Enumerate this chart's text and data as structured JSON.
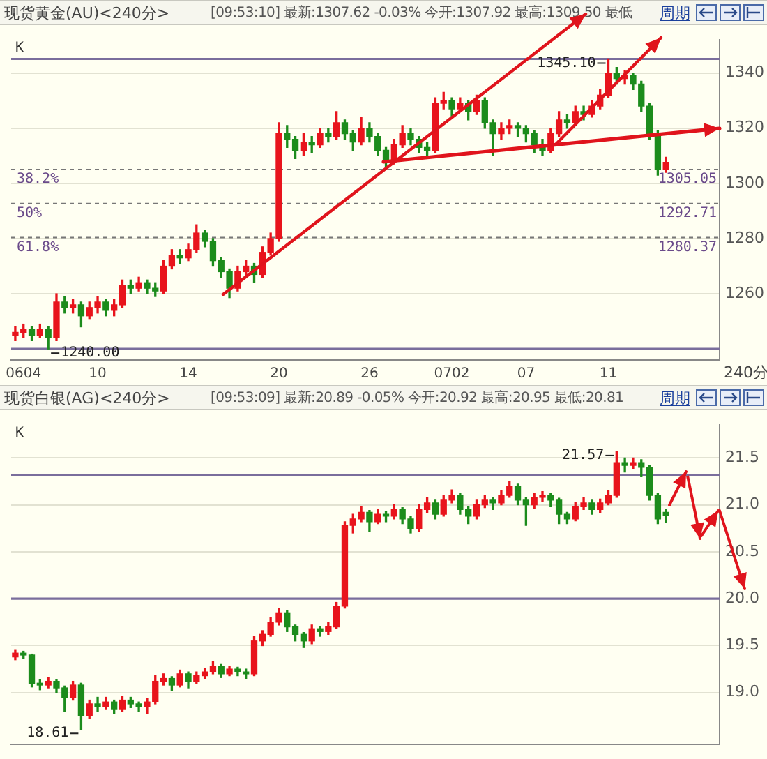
{
  "chart_data": [
    {
      "type": "candlestick",
      "title": "现货黄金(AU)<240分>",
      "subtitle": "[09:53:10] 最新:1307.62 -0.03% 今开:1307.92 最高:1309.50 最低",
      "xlabel": "240分",
      "categories": [
        null,
        "0604",
        null,
        null,
        null,
        null,
        null,
        null,
        null,
        null,
        "10",
        null,
        null,
        null,
        null,
        null,
        null,
        null,
        null,
        null,
        null,
        "14",
        null,
        null,
        null,
        null,
        null,
        null,
        null,
        null,
        null,
        null,
        "20",
        null,
        null,
        null,
        null,
        null,
        null,
        null,
        null,
        null,
        null,
        "26",
        null,
        null,
        null,
        null,
        null,
        null,
        null,
        null,
        null,
        "0702",
        null,
        null,
        null,
        null,
        null,
        null,
        null,
        null,
        "07",
        null,
        null,
        null,
        null,
        null,
        null,
        null,
        null,
        null,
        "11",
        null,
        null,
        null,
        null,
        null,
        null,
        null,
        null,
        null,
        null,
        null,
        null,
        null
      ],
      "ohlc": [
        [
          1245,
          1248,
          1243,
          1246
        ],
        [
          1246,
          1249,
          1244,
          1247
        ],
        [
          1247,
          1248,
          1243,
          1245
        ],
        [
          1245,
          1249,
          1244,
          1247
        ],
        [
          1247,
          1248,
          1240,
          1244
        ],
        [
          1244,
          1260,
          1243,
          1257
        ],
        [
          1257,
          1259,
          1253,
          1255
        ],
        [
          1255,
          1258,
          1253,
          1256
        ],
        [
          1256,
          1257,
          1248,
          1252
        ],
        [
          1252,
          1257,
          1251,
          1255
        ],
        [
          1255,
          1259,
          1253,
          1257
        ],
        [
          1257,
          1258,
          1252,
          1254
        ],
        [
          1254,
          1258,
          1252,
          1256
        ],
        [
          1256,
          1265,
          1255,
          1263
        ],
        [
          1263,
          1265,
          1260,
          1262
        ],
        [
          1262,
          1266,
          1261,
          1264
        ],
        [
          1264,
          1265,
          1260,
          1262
        ],
        [
          1262,
          1264,
          1259,
          1261
        ],
        [
          1261,
          1272,
          1260,
          1270
        ],
        [
          1270,
          1276,
          1269,
          1274
        ],
        [
          1274,
          1276,
          1271,
          1273
        ],
        [
          1273,
          1278,
          1272,
          1276
        ],
        [
          1276,
          1285,
          1275,
          1282
        ],
        [
          1282,
          1283,
          1277,
          1279
        ],
        [
          1279,
          1280,
          1270,
          1272
        ],
        [
          1272,
          1273,
          1266,
          1268
        ],
        [
          1268,
          1269,
          1258.6,
          1262
        ],
        [
          1262,
          1270,
          1261,
          1268
        ],
        [
          1268,
          1272,
          1266,
          1270
        ],
        [
          1270,
          1271,
          1264,
          1267
        ],
        [
          1267,
          1277,
          1266,
          1275
        ],
        [
          1275,
          1282,
          1274,
          1280
        ],
        [
          1280,
          1322,
          1279,
          1318
        ],
        [
          1318,
          1321,
          1313,
          1316
        ],
        [
          1316,
          1317,
          1309,
          1312
        ],
        [
          1312,
          1318,
          1310,
          1315
        ],
        [
          1315,
          1317,
          1311,
          1314
        ],
        [
          1314,
          1320,
          1313,
          1318
        ],
        [
          1318,
          1320,
          1315,
          1317
        ],
        [
          1317,
          1326,
          1316,
          1322
        ],
        [
          1322,
          1323,
          1316,
          1318
        ],
        [
          1318,
          1319,
          1312,
          1315
        ],
        [
          1315,
          1324,
          1314,
          1320
        ],
        [
          1320,
          1322,
          1315,
          1317
        ],
        [
          1317,
          1318,
          1310,
          1312
        ],
        [
          1312,
          1313,
          1306,
          1308
        ],
        [
          1308,
          1316,
          1307,
          1314
        ],
        [
          1314,
          1321,
          1313,
          1318
        ],
        [
          1318,
          1320,
          1314,
          1316
        ],
        [
          1316,
          1317,
          1311,
          1313
        ],
        [
          1313,
          1315,
          1310,
          1312
        ],
        [
          1312,
          1331,
          1311,
          1329
        ],
        [
          1329,
          1333,
          1327,
          1330
        ],
        [
          1330,
          1331,
          1324,
          1327
        ],
        [
          1327,
          1331,
          1326,
          1329
        ],
        [
          1329,
          1330,
          1323,
          1326
        ],
        [
          1326,
          1332,
          1325,
          1330
        ],
        [
          1330,
          1331,
          1320,
          1322
        ],
        [
          1322,
          1323,
          1310,
          1318
        ],
        [
          1318,
          1322,
          1316,
          1320
        ],
        [
          1320,
          1323,
          1318,
          1321
        ],
        [
          1321,
          1322,
          1317,
          1320
        ],
        [
          1320,
          1321,
          1315,
          1318
        ],
        [
          1318,
          1319,
          1311,
          1314
        ],
        [
          1314,
          1316,
          1310,
          1312
        ],
        [
          1312,
          1320,
          1311,
          1318
        ],
        [
          1318,
          1326,
          1317,
          1323
        ],
        [
          1323,
          1325,
          1320,
          1322
        ],
        [
          1322,
          1328,
          1321,
          1326
        ],
        [
          1326,
          1328,
          1323,
          1325
        ],
        [
          1325,
          1330,
          1324,
          1328
        ],
        [
          1328,
          1334,
          1327,
          1332
        ],
        [
          1332,
          1345.1,
          1331,
          1340
        ],
        [
          1340,
          1342,
          1336,
          1338
        ],
        [
          1338,
          1341,
          1336,
          1339
        ],
        [
          1339,
          1340,
          1334,
          1336
        ],
        [
          1336,
          1337,
          1326,
          1328
        ],
        [
          1328,
          1329,
          1316,
          1318
        ],
        [
          1318,
          1319,
          1303,
          1305
        ],
        [
          1305,
          1309.5,
          1304,
          1307.62
        ],
        null,
        null,
        null,
        null,
        null,
        null
      ],
      "colors": [
        "#e8141c",
        "#e8141c",
        "#1c8c1c",
        "#e8141c",
        "#1c8c1c",
        "#e8141c",
        "#1c8c1c",
        "#e8141c",
        "#1c8c1c",
        "#e8141c",
        "#e8141c",
        "#1c8c1c",
        "#e8141c",
        "#e8141c",
        "#1c8c1c",
        "#e8141c",
        "#1c8c1c",
        "#1c8c1c",
        "#e8141c",
        "#e8141c",
        "#1c8c1c",
        "#e8141c",
        "#e8141c",
        "#1c8c1c",
        "#1c8c1c",
        "#1c8c1c",
        "#1c8c1c",
        "#e8141c",
        "#e8141c",
        "#1c8c1c",
        "#e8141c",
        "#e8141c",
        "#e8141c",
        "#1c8c1c",
        "#1c8c1c",
        "#e8141c",
        "#1c8c1c",
        "#e8141c",
        "#1c8c1c",
        "#e8141c",
        "#1c8c1c",
        "#1c8c1c",
        "#e8141c",
        "#1c8c1c",
        "#1c8c1c",
        "#1c8c1c",
        "#e8141c",
        "#e8141c",
        "#1c8c1c",
        "#1c8c1c",
        "#1c8c1c",
        "#e8141c",
        "#e8141c",
        "#1c8c1c",
        "#e8141c",
        "#1c8c1c",
        "#e8141c",
        "#1c8c1c",
        "#1c8c1c",
        "#e8141c",
        "#e8141c",
        "#1c8c1c",
        "#1c8c1c",
        "#1c8c1c",
        "#1c8c1c",
        "#e8141c",
        "#e8141c",
        "#1c8c1c",
        "#e8141c",
        "#1c8c1c",
        "#e8141c",
        "#e8141c",
        "#e8141c",
        "#1c8c1c",
        "#e8141c",
        "#1c8c1c",
        "#1c8c1c",
        "#1c8c1c",
        "#1c8c1c",
        "#e8141c",
        null,
        null,
        null,
        null,
        null,
        null
      ],
      "ylim": [
        1236,
        1352
      ],
      "yticks": [
        1260,
        1280,
        1300,
        1320,
        1340
      ],
      "grid": "y",
      "ref_lines": [
        {
          "axis": "y",
          "value": 1345.1,
          "color": "#7a6e9c"
        },
        {
          "axis": "y",
          "value": 1240,
          "color": "#7a6e9c"
        },
        {
          "axis": "y",
          "value": 1305.05,
          "label": "1305.05",
          "color": "#777777",
          "line_style": "dashed"
        },
        {
          "axis": "y",
          "value": 1292.71,
          "label": "1292.71",
          "color": "#777777",
          "line_style": "dashed"
        },
        {
          "axis": "y",
          "value": 1280.37,
          "label": "1280.37",
          "color": "#777777",
          "line_style": "dashed"
        }
      ],
      "annotations": [
        "K",
        "周期",
        {
          "text": "1345.10",
          "y": 1345.1
        },
        {
          "text": "1240.00",
          "y": 1240
        },
        {
          "text": "38.2%",
          "y": 1305.05
        },
        {
          "text": "50%",
          "y": 1292.71
        },
        {
          "text": "61.8%",
          "y": 1280.37
        }
      ]
    },
    {
      "type": "candlestick",
      "title": "现货白银(AG)<240分>",
      "subtitle": "[09:53:09] 最新:20.89 -0.05% 今开:20.92 最高:20.95 最低:20.81",
      "categories": [
        null,
        null,
        null,
        null,
        null,
        null,
        null,
        null,
        null,
        null,
        null,
        null,
        null,
        null,
        null,
        null,
        null,
        null,
        null,
        null,
        null,
        null,
        null,
        null,
        null,
        null,
        null,
        null,
        null,
        null,
        null,
        null,
        null,
        null,
        null,
        null,
        null,
        null,
        null,
        null,
        null,
        null,
        null,
        null,
        null,
        null,
        null,
        null,
        null,
        null,
        null,
        null,
        null,
        null,
        null,
        null,
        null,
        null,
        null,
        null,
        null,
        null,
        null,
        null,
        null,
        null,
        null,
        null,
        null,
        null,
        null,
        null,
        null,
        null,
        null,
        null,
        null,
        null,
        null,
        null,
        null,
        null,
        null,
        null,
        null,
        null
      ],
      "ohlc": [
        [
          19.38,
          19.45,
          19.35,
          19.42
        ],
        [
          19.42,
          19.44,
          19.36,
          19.4
        ],
        [
          19.4,
          19.41,
          19.06,
          19.1
        ],
        [
          19.1,
          19.14,
          19.03,
          19.08
        ],
        [
          19.08,
          19.16,
          19.05,
          19.12
        ],
        [
          19.12,
          19.14,
          19,
          19.05
        ],
        [
          19.05,
          19.07,
          18.8,
          18.95
        ],
        [
          18.95,
          19.12,
          18.92,
          19.08
        ],
        [
          19.08,
          19.1,
          18.61,
          18.75
        ],
        [
          18.75,
          18.92,
          18.72,
          18.88
        ],
        [
          18.88,
          18.95,
          18.8,
          18.85
        ],
        [
          18.85,
          18.95,
          18.82,
          18.9
        ],
        [
          18.9,
          18.92,
          18.78,
          18.82
        ],
        [
          18.82,
          18.96,
          18.8,
          18.92
        ],
        [
          18.92,
          18.95,
          18.84,
          18.88
        ],
        [
          18.88,
          18.9,
          18.8,
          18.85
        ],
        [
          18.85,
          18.94,
          18.78,
          18.9
        ],
        [
          18.9,
          19.18,
          18.88,
          19.12
        ],
        [
          19.12,
          19.2,
          19.08,
          19.15
        ],
        [
          19.15,
          19.17,
          19.02,
          19.08
        ],
        [
          19.08,
          19.24,
          19.06,
          19.2
        ],
        [
          19.2,
          19.22,
          19.05,
          19.12
        ],
        [
          19.12,
          19.22,
          19.1,
          19.18
        ],
        [
          19.18,
          19.26,
          19.15,
          19.22
        ],
        [
          19.22,
          19.33,
          19.2,
          19.28
        ],
        [
          19.28,
          19.3,
          19.16,
          19.2
        ],
        [
          19.2,
          19.28,
          19.18,
          19.25
        ],
        [
          19.25,
          19.27,
          19.18,
          19.22
        ],
        [
          19.22,
          19.25,
          19.15,
          19.2
        ],
        [
          19.2,
          19.6,
          19.18,
          19.55
        ],
        [
          19.55,
          19.66,
          19.5,
          19.62
        ],
        [
          19.62,
          19.8,
          19.6,
          19.75
        ],
        [
          19.75,
          19.9,
          19.72,
          19.85
        ],
        [
          19.85,
          19.87,
          19.65,
          19.7
        ],
        [
          19.7,
          19.72,
          19.55,
          19.62
        ],
        [
          19.62,
          19.64,
          19.48,
          19.55
        ],
        [
          19.55,
          19.72,
          19.52,
          19.68
        ],
        [
          19.68,
          19.7,
          19.6,
          19.65
        ],
        [
          19.65,
          19.75,
          19.62,
          19.7
        ],
        [
          19.7,
          19.96,
          19.68,
          19.92
        ],
        [
          19.92,
          20.82,
          19.9,
          20.78
        ],
        [
          20.78,
          20.9,
          20.7,
          20.85
        ],
        [
          20.85,
          20.98,
          20.82,
          20.92
        ],
        [
          20.92,
          20.94,
          20.72,
          20.82
        ],
        [
          20.82,
          20.95,
          20.8,
          20.9
        ],
        [
          20.9,
          20.93,
          20.82,
          20.88
        ],
        [
          20.88,
          21,
          20.85,
          20.95
        ],
        [
          20.95,
          20.97,
          20.8,
          20.85
        ],
        [
          20.85,
          20.88,
          20.7,
          20.75
        ],
        [
          20.75,
          21,
          20.72,
          20.95
        ],
        [
          20.95,
          21.08,
          20.92,
          21.02
        ],
        [
          21.02,
          21.05,
          20.85,
          20.9
        ],
        [
          20.9,
          21.1,
          20.88,
          21.05
        ],
        [
          21.05,
          21.16,
          21.02,
          21.1
        ],
        [
          21.1,
          21.12,
          20.9,
          20.95
        ],
        [
          20.95,
          20.98,
          20.8,
          20.88
        ],
        [
          20.88,
          21.05,
          20.85,
          21
        ],
        [
          21,
          21.1,
          20.97,
          21.05
        ],
        [
          21.05,
          21.08,
          20.95,
          21.02
        ],
        [
          21.02,
          21.15,
          21,
          21.1
        ],
        [
          21.1,
          21.25,
          21.08,
          21.2
        ],
        [
          21.2,
          21.22,
          21,
          21.05
        ],
        [
          21.05,
          21.08,
          20.78,
          21
        ],
        [
          21,
          21.12,
          20.96,
          21.08
        ],
        [
          21.08,
          21.14,
          21.04,
          21.1
        ],
        [
          21.1,
          21.12,
          20.98,
          21.05
        ],
        [
          21.05,
          21.07,
          20.8,
          20.9
        ],
        [
          20.9,
          20.92,
          20.8,
          20.85
        ],
        [
          20.85,
          21.03,
          20.83,
          20.98
        ],
        [
          20.98,
          21.08,
          20.95,
          21.02
        ],
        [
          21.02,
          21.05,
          20.9,
          20.95
        ],
        [
          20.95,
          21.06,
          20.92,
          21.02
        ],
        [
          21.02,
          21.15,
          21,
          21.1
        ],
        [
          21.1,
          21.57,
          21.08,
          21.45
        ],
        [
          21.45,
          21.5,
          21.35,
          21.42
        ],
        [
          21.42,
          21.5,
          21.38,
          21.45
        ],
        [
          21.45,
          21.48,
          21.3,
          21.4
        ],
        [
          21.4,
          21.42,
          21.05,
          21.1
        ],
        [
          21.1,
          21.12,
          20.8,
          20.85
        ],
        [
          20.92,
          20.95,
          20.81,
          20.89
        ],
        null,
        null,
        null,
        null,
        null,
        null
      ],
      "colors": [
        "#e8141c",
        "#1c8c1c",
        "#1c8c1c",
        "#1c8c1c",
        "#e8141c",
        "#1c8c1c",
        "#1c8c1c",
        "#e8141c",
        "#1c8c1c",
        "#e8141c",
        "#1c8c1c",
        "#e8141c",
        "#1c8c1c",
        "#e8141c",
        "#1c8c1c",
        "#1c8c1c",
        "#e8141c",
        "#e8141c",
        "#e8141c",
        "#1c8c1c",
        "#e8141c",
        "#1c8c1c",
        "#e8141c",
        "#e8141c",
        "#e8141c",
        "#1c8c1c",
        "#e8141c",
        "#1c8c1c",
        "#1c8c1c",
        "#e8141c",
        "#e8141c",
        "#e8141c",
        "#e8141c",
        "#1c8c1c",
        "#1c8c1c",
        "#1c8c1c",
        "#e8141c",
        "#1c8c1c",
        "#e8141c",
        "#e8141c",
        "#e8141c",
        "#e8141c",
        "#e8141c",
        "#1c8c1c",
        "#e8141c",
        "#1c8c1c",
        "#e8141c",
        "#1c8c1c",
        "#1c8c1c",
        "#e8141c",
        "#e8141c",
        "#1c8c1c",
        "#e8141c",
        "#e8141c",
        "#1c8c1c",
        "#1c8c1c",
        "#e8141c",
        "#e8141c",
        "#1c8c1c",
        "#e8141c",
        "#e8141c",
        "#1c8c1c",
        "#1c8c1c",
        "#e8141c",
        "#e8141c",
        "#1c8c1c",
        "#1c8c1c",
        "#1c8c1c",
        "#e8141c",
        "#e8141c",
        "#1c8c1c",
        "#e8141c",
        "#e8141c",
        "#e8141c",
        "#1c8c1c",
        "#e8141c",
        "#1c8c1c",
        "#1c8c1c",
        "#1c8c1c",
        "#1c8c1c",
        null,
        null,
        null,
        null,
        null,
        null
      ],
      "ylim": [
        18.45,
        21.85
      ],
      "yticks": [
        {
          "value": 19,
          "label": "19.0"
        },
        {
          "value": 19.5,
          "label": "19.5"
        },
        {
          "value": 20,
          "label": "20.0"
        },
        {
          "value": 20.5,
          "label": "20.5"
        },
        {
          "value": 21,
          "label": "21.0"
        },
        {
          "value": 21.5,
          "label": "21.5"
        }
      ],
      "grid": "y",
      "tick_labels": "y",
      "ref_lines": [
        {
          "axis": "y",
          "value": 21.32,
          "color": "#7a6e9c"
        },
        {
          "axis": "y",
          "value": 20,
          "color": "#7a6e9c"
        }
      ],
      "annotations": [
        "K",
        "周期",
        "21.57",
        "18.61"
      ]
    }
  ]
}
